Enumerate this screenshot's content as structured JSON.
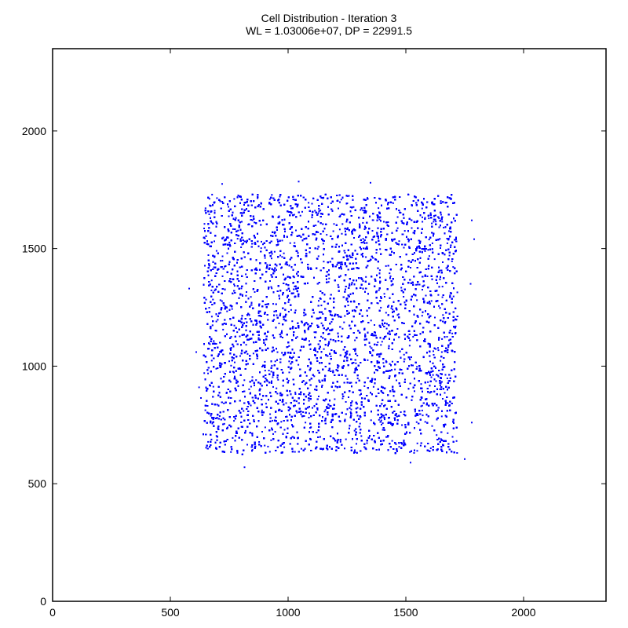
{
  "chart_data": {
    "type": "scatter",
    "title": "Cell Distribution - Iteration 3",
    "subtitle": "WL = 1.03006e+07, DP = 22991.5",
    "xlabel": "",
    "ylabel": "",
    "xlim": [
      0,
      2350
    ],
    "ylim": [
      0,
      2350
    ],
    "x_ticks": [
      0,
      500,
      1000,
      1500,
      2000
    ],
    "y_ticks": [
      0,
      500,
      1000,
      1500,
      2000
    ],
    "x_tick_labels": [
      "0",
      "500",
      "1000",
      "1500",
      "2000"
    ],
    "y_tick_labels": [
      "0",
      "500",
      "1000",
      "1500",
      "2000"
    ],
    "grid": false,
    "legend": "none",
    "marker_color": "#0000ff",
    "point_count": 20000,
    "cluster": {
      "x_range": [
        640,
        1720
      ],
      "y_range": [
        630,
        1730
      ]
    },
    "outliers": [
      {
        "x": 580,
        "y": 1330
      },
      {
        "x": 610,
        "y": 1060
      },
      {
        "x": 622,
        "y": 910
      },
      {
        "x": 815,
        "y": 570
      },
      {
        "x": 1520,
        "y": 590
      },
      {
        "x": 1750,
        "y": 605
      },
      {
        "x": 1780,
        "y": 760
      },
      {
        "x": 1775,
        "y": 1350
      },
      {
        "x": 1790,
        "y": 1540
      },
      {
        "x": 1780,
        "y": 1620
      },
      {
        "x": 720,
        "y": 1775
      },
      {
        "x": 1045,
        "y": 1785
      },
      {
        "x": 1350,
        "y": 1780
      },
      {
        "x": 1240,
        "y": 650
      }
    ]
  }
}
